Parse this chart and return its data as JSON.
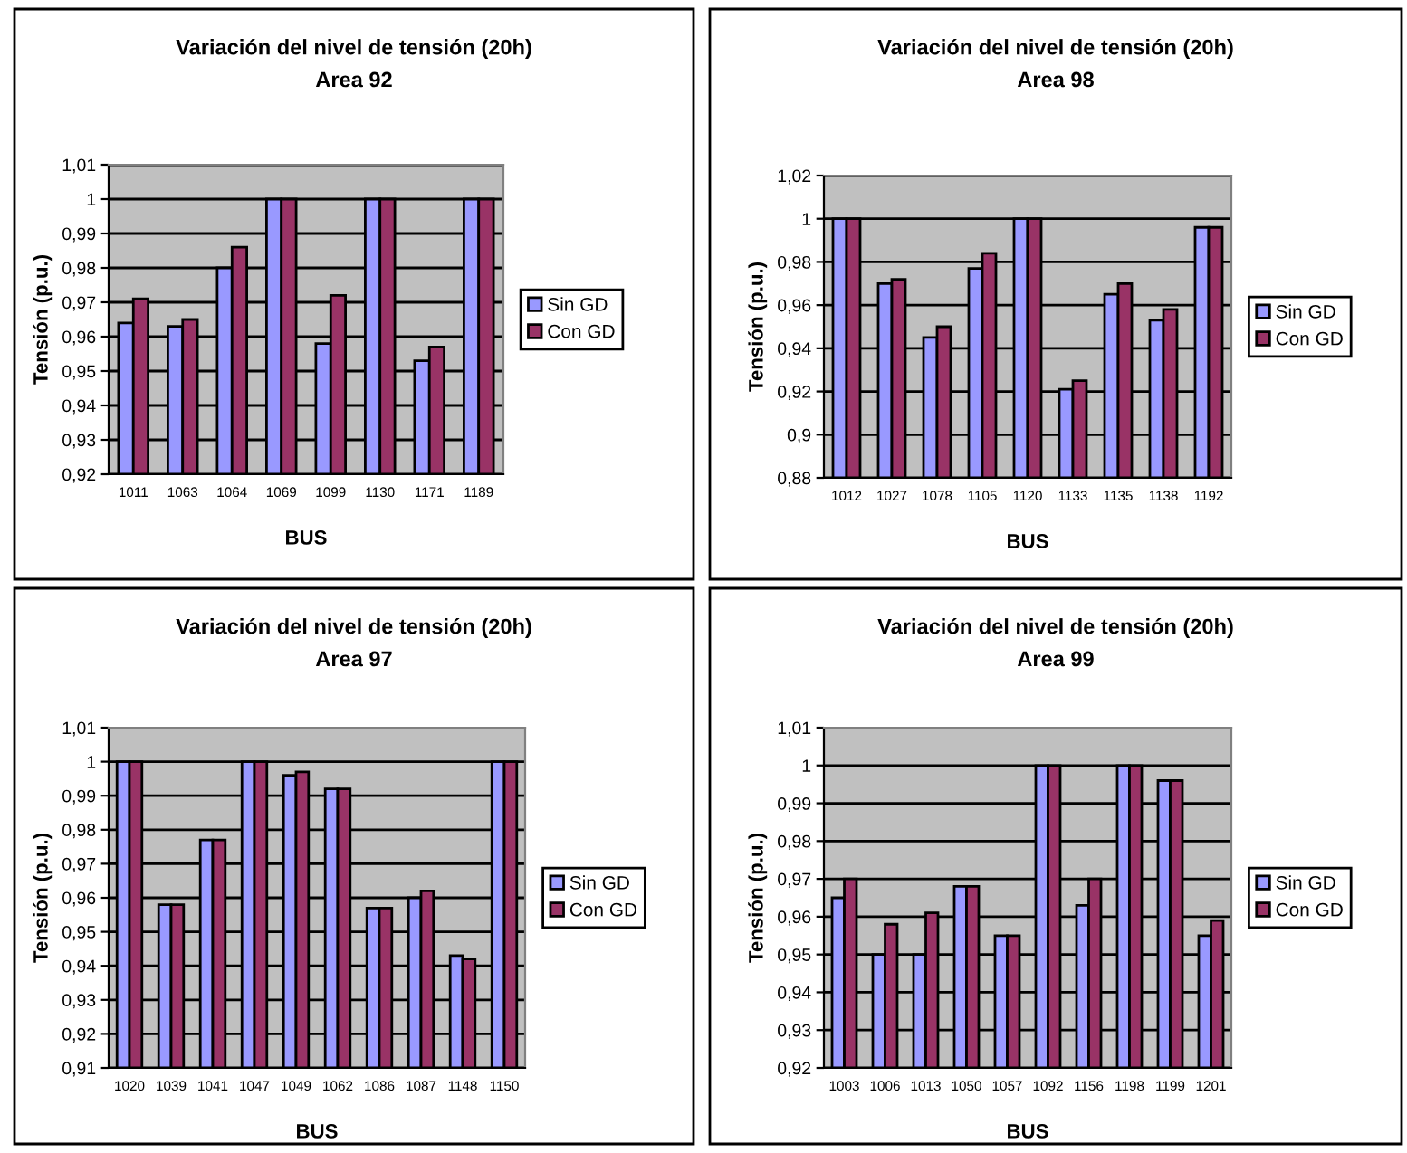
{
  "chart_data": [
    {
      "type": "bar",
      "title": "Variación del nivel de tensión (20h)",
      "subtitle": "Area 92",
      "xlabel": "BUS",
      "ylabel": "Tensión (p.u.)",
      "categories": [
        "1011",
        "1063",
        "1064",
        "1069",
        "1099",
        "1130",
        "1171",
        "1189"
      ],
      "series": [
        {
          "name": "Sin GD",
          "color": "#9999ff",
          "values": [
            0.964,
            0.963,
            0.98,
            1.0,
            0.958,
            1.0,
            0.953,
            1.0
          ]
        },
        {
          "name": "Con GD",
          "color": "#993366",
          "values": [
            0.971,
            0.965,
            0.986,
            1.0,
            0.972,
            1.0,
            0.957,
            1.0
          ]
        }
      ],
      "ylim": [
        0.92,
        1.01
      ],
      "yticks": [
        {
          "value": 0.92,
          "label": "0,92"
        },
        {
          "value": 0.93,
          "label": "0,93"
        },
        {
          "value": 0.94,
          "label": "0,94"
        },
        {
          "value": 0.95,
          "label": "0,95"
        },
        {
          "value": 0.96,
          "label": "0,96"
        },
        {
          "value": 0.97,
          "label": "0,97"
        },
        {
          "value": 0.98,
          "label": "0,98"
        },
        {
          "value": 0.99,
          "label": "0,99"
        },
        {
          "value": 1,
          "label": "1"
        },
        {
          "value": 1.01,
          "label": "1,01"
        }
      ],
      "grid": "y",
      "legend": "right"
    },
    {
      "type": "bar",
      "title": "Variación del nivel de tensión (20h)",
      "subtitle": "Area 98",
      "xlabel": "BUS",
      "ylabel": "Tensión (p.u.)",
      "categories": [
        "1012",
        "1027",
        "1078",
        "1105",
        "1120",
        "1133",
        "1135",
        "1138",
        "1192"
      ],
      "series": [
        {
          "name": "Sin GD",
          "color": "#9999ff",
          "values": [
            1.0,
            0.97,
            0.945,
            0.977,
            1.0,
            0.921,
            0.965,
            0.953,
            0.996
          ]
        },
        {
          "name": "Con GD",
          "color": "#993366",
          "values": [
            1.0,
            0.972,
            0.95,
            0.984,
            1.0,
            0.925,
            0.97,
            0.958,
            0.996
          ]
        }
      ],
      "ylim": [
        0.88,
        1.02
      ],
      "yticks": [
        {
          "value": 0.88,
          "label": "0,88"
        },
        {
          "value": 0.9,
          "label": "0,9"
        },
        {
          "value": 0.92,
          "label": "0,92"
        },
        {
          "value": 0.94,
          "label": "0,94"
        },
        {
          "value": 0.96,
          "label": "0,96"
        },
        {
          "value": 0.98,
          "label": "0,98"
        },
        {
          "value": 1,
          "label": "1"
        },
        {
          "value": 1.02,
          "label": "1,02"
        }
      ],
      "grid": "y",
      "legend": "right"
    },
    {
      "type": "bar",
      "title": "Variación del nivel de tensión (20h)",
      "subtitle": "Area 97",
      "xlabel": "BUS",
      "ylabel": "Tensión (p.u.)",
      "categories": [
        "1020",
        "1039",
        "1041",
        "1047",
        "1049",
        "1062",
        "1086",
        "1087",
        "1148",
        "1150"
      ],
      "series": [
        {
          "name": "Sin GD",
          "color": "#9999ff",
          "values": [
            1.0,
            0.958,
            0.977,
            1.0,
            0.996,
            0.992,
            0.957,
            0.96,
            0.943,
            1.0
          ]
        },
        {
          "name": "Con GD",
          "color": "#993366",
          "values": [
            1.0,
            0.958,
            0.977,
            1.0,
            0.997,
            0.992,
            0.957,
            0.962,
            0.942,
            1.0
          ]
        }
      ],
      "ylim": [
        0.91,
        1.01
      ],
      "yticks": [
        {
          "value": 0.91,
          "label": "0,91"
        },
        {
          "value": 0.92,
          "label": "0,92"
        },
        {
          "value": 0.93,
          "label": "0,93"
        },
        {
          "value": 0.94,
          "label": "0,94"
        },
        {
          "value": 0.95,
          "label": "0,95"
        },
        {
          "value": 0.96,
          "label": "0,96"
        },
        {
          "value": 0.97,
          "label": "0,97"
        },
        {
          "value": 0.98,
          "label": "0,98"
        },
        {
          "value": 0.99,
          "label": "0,99"
        },
        {
          "value": 1,
          "label": "1"
        },
        {
          "value": 1.01,
          "label": "1,01"
        }
      ],
      "grid": "y",
      "legend": "right"
    },
    {
      "type": "bar",
      "title": "Variación del nivel de tensión (20h)",
      "subtitle": "Area 99",
      "xlabel": "BUS",
      "ylabel": "Tensión (p.u.)",
      "categories": [
        "1003",
        "1006",
        "1013",
        "1050",
        "1057",
        "1092",
        "1156",
        "1198",
        "1199",
        "1201"
      ],
      "series": [
        {
          "name": "Sin GD",
          "color": "#9999ff",
          "values": [
            0.965,
            0.95,
            0.95,
            0.968,
            0.955,
            1.0,
            0.963,
            1.0,
            0.996,
            0.955
          ]
        },
        {
          "name": "Con GD",
          "color": "#993366",
          "values": [
            0.97,
            0.958,
            0.961,
            0.968,
            0.955,
            1.0,
            0.97,
            1.0,
            0.996,
            0.959
          ]
        }
      ],
      "ylim": [
        0.92,
        1.01
      ],
      "yticks": [
        {
          "value": 0.92,
          "label": "0,92"
        },
        {
          "value": 0.93,
          "label": "0,93"
        },
        {
          "value": 0.94,
          "label": "0,94"
        },
        {
          "value": 0.95,
          "label": "0,95"
        },
        {
          "value": 0.96,
          "label": "0,96"
        },
        {
          "value": 0.97,
          "label": "0,97"
        },
        {
          "value": 0.98,
          "label": "0,98"
        },
        {
          "value": 0.99,
          "label": "0,99"
        },
        {
          "value": 1,
          "label": "1"
        },
        {
          "value": 1.01,
          "label": "1,01"
        }
      ],
      "grid": "y",
      "legend": "right"
    }
  ]
}
